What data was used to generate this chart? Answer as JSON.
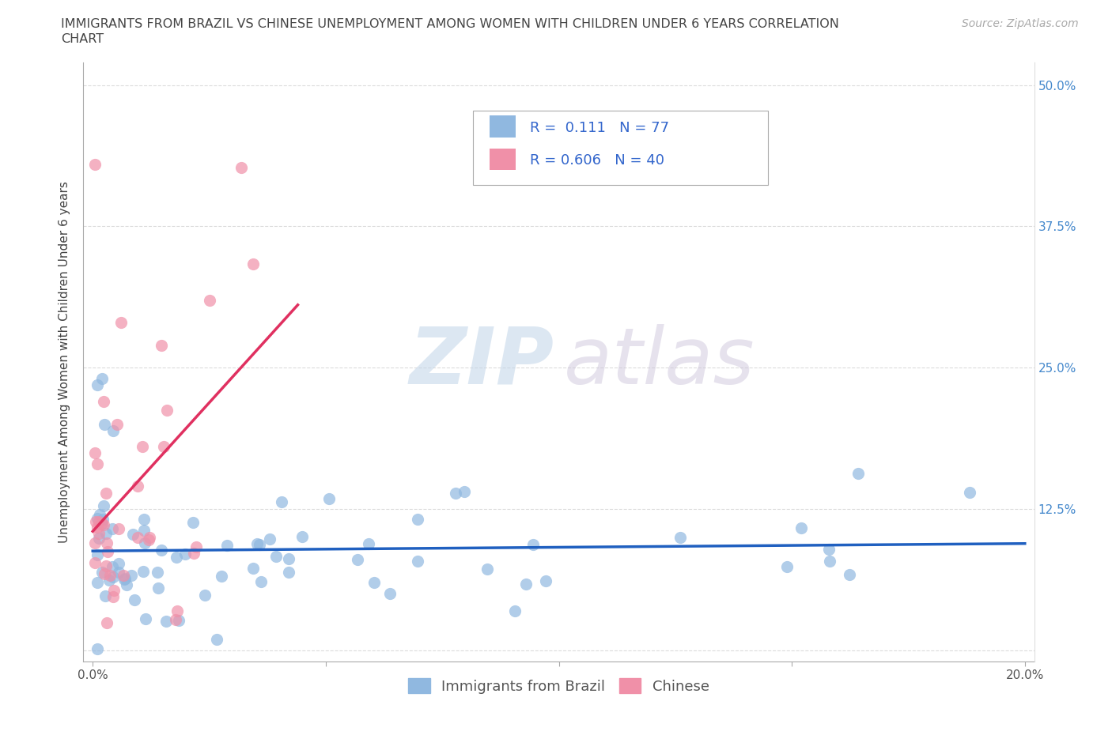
{
  "title_line1": "IMMIGRANTS FROM BRAZIL VS CHINESE UNEMPLOYMENT AMONG WOMEN WITH CHILDREN UNDER 6 YEARS CORRELATION",
  "title_line2": "CHART",
  "source": "Source: ZipAtlas.com",
  "ylabel": "Unemployment Among Women with Children Under 6 years",
  "color_brazil": "#90b8e0",
  "color_chinese": "#f090a8",
  "line_color_brazil": "#2060c0",
  "line_color_chinese": "#e03060",
  "legend_label1": "Immigrants from Brazil",
  "legend_label2": "Chinese",
  "R_brazil": 0.111,
  "N_brazil": 77,
  "R_chinese": 0.606,
  "N_chinese": 40,
  "xlim_max": 0.2,
  "ylim_max": 0.52,
  "grid_color": "#cccccc",
  "right_tick_color": "#4488cc",
  "title_fontsize": 11.5,
  "axis_label_fontsize": 11,
  "tick_fontsize": 11,
  "legend_fontsize": 13,
  "source_fontsize": 10
}
